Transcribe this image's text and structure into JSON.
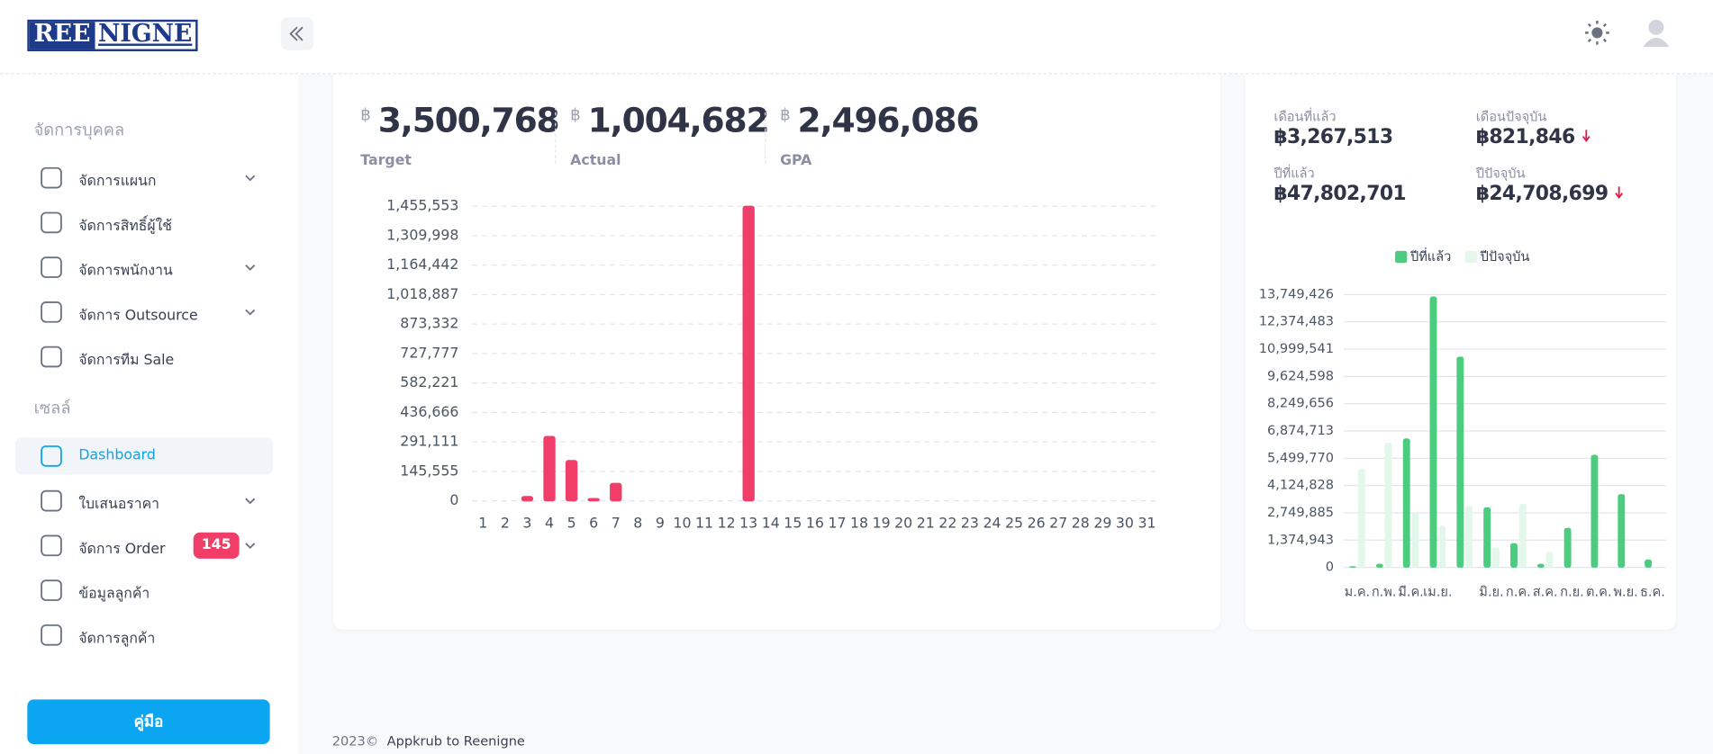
{
  "header": {
    "logo": [
      "REE",
      "NIGNE"
    ]
  },
  "sidebar": {
    "sections": [
      {
        "title": "จัดการบุคคล",
        "items": [
          {
            "label": "จัดการแผนก"
          },
          {
            "label": "จัดการสิทธิ์ผู้ใช้"
          },
          {
            "label": "จัดการพนักงาน"
          },
          {
            "label": "จัดการ Outsource"
          },
          {
            "label": "จัดการทีม Sale"
          }
        ]
      },
      {
        "title": "เซลล์",
        "items": [
          {
            "label": "Dashboard"
          },
          {
            "label": "ใบเสนอราคา"
          },
          {
            "label": "จัดการ Order",
            "badge": 145
          },
          {
            "label": "ข้อมูลลูกค้า"
          },
          {
            "label": "จัดการลูกค้า"
          }
        ]
      }
    ],
    "manual_button": "คู่มือ"
  },
  "stats": [
    {
      "currency": "฿",
      "value": "3,500,768",
      "label": "Target"
    },
    {
      "currency": "฿",
      "value": "1,004,682",
      "label": "Actual"
    },
    {
      "currency": "฿",
      "value": "2,496,086",
      "label": "GPA"
    }
  ],
  "summary": [
    {
      "label": "เดือนที่แล้ว",
      "value": "฿3,267,513"
    },
    {
      "label": "เดือนปัจจุบัน",
      "value": "฿821,846"
    },
    {
      "label": "ปีที่แล้ว",
      "value": "฿47,802,701"
    },
    {
      "label": "ปีปัจจุบัน",
      "value": "฿24,708,699"
    }
  ],
  "chart_data": [
    {
      "type": "bar",
      "categories": [
        1,
        2,
        3,
        4,
        5,
        6,
        7,
        8,
        9,
        10,
        11,
        12,
        13,
        14,
        15,
        16,
        17,
        18,
        19,
        20,
        21,
        22,
        23,
        24,
        25,
        26,
        27,
        28,
        29,
        30,
        31
      ],
      "values": [
        0,
        0,
        21000,
        318000,
        199000,
        11000,
        86000,
        0,
        0,
        0,
        0,
        0,
        1455553,
        0,
        0,
        0,
        0,
        0,
        0,
        0,
        0,
        0,
        0,
        0,
        0,
        0,
        0,
        0,
        0,
        0,
        0
      ],
      "color": "#f03e69",
      "ylim": [
        0,
        1455553
      ],
      "yticks": [
        0,
        {
          "value": 145555,
          "label": "145,555"
        },
        {
          "value": 291111,
          "label": "291,111"
        },
        {
          "value": 436666,
          "label": "436,666"
        },
        {
          "value": 582221,
          "label": "582,221"
        },
        {
          "value": 727777,
          "label": "727,777"
        },
        {
          "value": 873332,
          "label": "873,332"
        },
        {
          "value": 1018887,
          "label": "1,018,887"
        },
        {
          "value": 1164442,
          "label": "1,164,442"
        },
        {
          "value": 1309998,
          "label": "1,309,998"
        },
        {
          "value": 1455553,
          "label": "1,455,553"
        }
      ],
      "grid": true
    },
    {
      "type": "grouped_bar",
      "categories": [
        "ม.ค.",
        "ก.พ.",
        "มี.ค.",
        "เม.ย.",
        null,
        "มิ.ย.",
        "ก.ค.",
        "ส.ค.",
        "ก.ย.",
        "ต.ค.",
        "พ.ย.",
        "ธ.ค."
      ],
      "series": [
        {
          "name": "ปีที่แล้ว",
          "color": "#4ccc7f",
          "values": [
            50000,
            165000,
            6490000,
            13640000,
            10610000,
            3020000,
            1210000,
            165000,
            1980000,
            5660000,
            3680000,
            385000
          ]
        },
        {
          "name": "ปีปัจจุบัน",
          "color": "#e3f7ea",
          "values": [
            4950000,
            6270000,
            2750000,
            2090000,
            3080000,
            990000,
            3190000,
            770000,
            0,
            0,
            0,
            0
          ]
        }
      ],
      "ylim": [
        0,
        13749426
      ],
      "yticks": [
        0,
        {
          "value": 1374943,
          "label": "1,374,943"
        },
        {
          "value": 2749885,
          "label": "2,749,885"
        },
        {
          "value": 4124828,
          "label": "4,124,828"
        },
        {
          "value": 5499770,
          "label": "5,499,770"
        },
        {
          "value": 6874713,
          "label": "6,874,713"
        },
        {
          "value": 8249656,
          "label": "8,249,656"
        },
        {
          "value": 9624598,
          "label": "9,624,598"
        },
        {
          "value": 10999541,
          "label": "10,999,541"
        },
        {
          "value": 12374483,
          "label": "12,374,483"
        },
        {
          "value": 13749426,
          "label": "13,749,426"
        }
      ],
      "grid": true,
      "legend": "top"
    }
  ],
  "footer": {
    "year": "2023©",
    "text": "Appkrub to Reenigne"
  }
}
